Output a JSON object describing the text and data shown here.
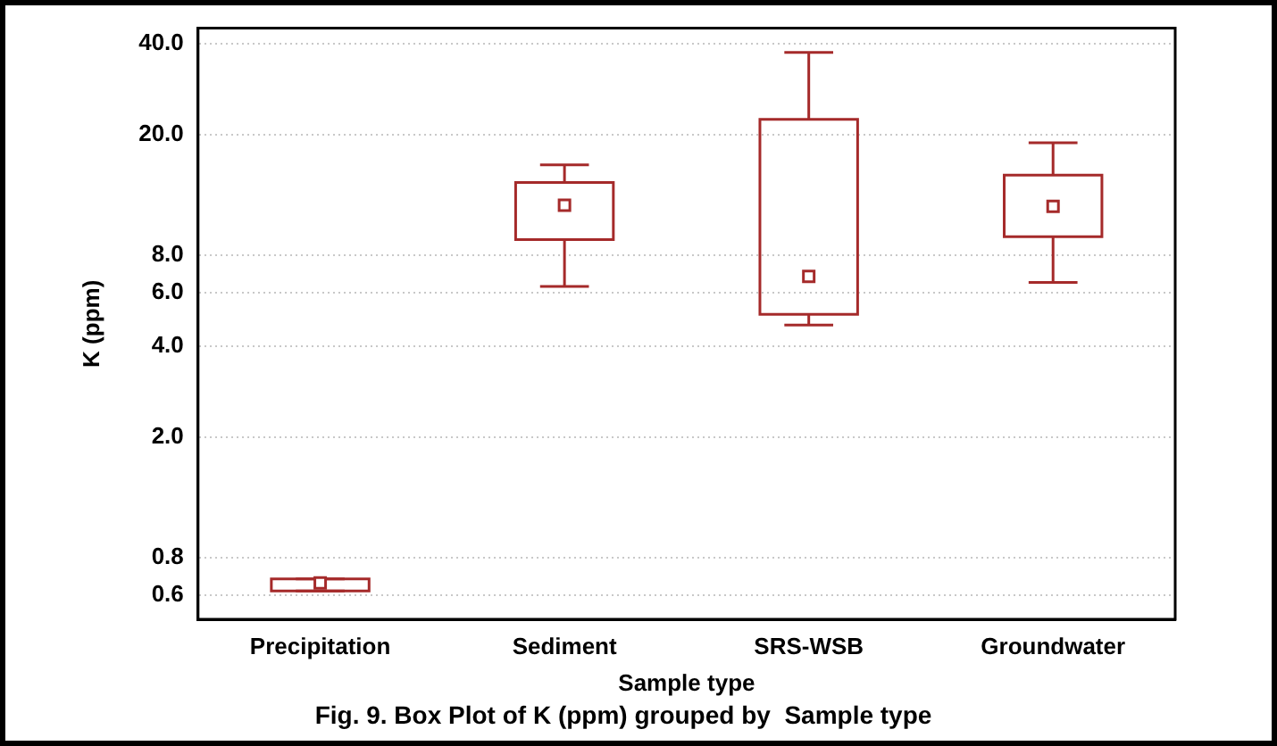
{
  "chart_data": {
    "type": "box",
    "title": "Fig. 9. Box Plot of K (ppm) grouped by  Sample type",
    "xlabel": "Sample type",
    "ylabel": "K (ppm)",
    "categories": [
      "Precipitation",
      "Sediment",
      "SRS-WSB",
      "Groundwater"
    ],
    "boxes": [
      {
        "low": 0.62,
        "q1": 0.62,
        "median": 0.66,
        "q3": 0.68,
        "high": 0.68
      },
      {
        "low": 6.3,
        "q1": 9,
        "median": 11.7,
        "q3": 13.9,
        "high": 15.9
      },
      {
        "low": 4.7,
        "q1": 5.1,
        "median": 6.8,
        "q3": 22.5,
        "high": 37.4
      },
      {
        "low": 6.5,
        "q1": 9.2,
        "median": 11.6,
        "q3": 14.7,
        "high": 18.8
      }
    ],
    "color": "#a52a2a",
    "log": "y",
    "ylim": [
      0.5,
      45
    ],
    "yticks": [
      {
        "value": 0.6,
        "label": "0.6"
      },
      {
        "value": 0.8,
        "label": "0.8"
      },
      {
        "value": 2,
        "label": "2.0"
      },
      {
        "value": 4,
        "label": "4.0"
      },
      {
        "value": 6,
        "label": "6.0"
      },
      {
        "value": 8,
        "label": "8.0"
      },
      {
        "value": 20,
        "label": "20.0"
      },
      {
        "value": 40,
        "label": "40.0"
      }
    ],
    "grid": "y",
    "legend": false
  }
}
